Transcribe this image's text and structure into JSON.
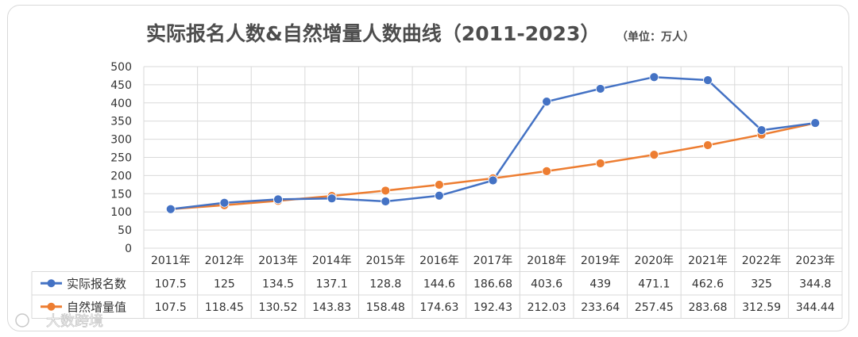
{
  "chart_data": {
    "type": "line",
    "title": "实际报名人数&自然增量人数曲线（2011-2023）",
    "unit_note": "（单位：万人）",
    "categories": [
      "2011年",
      "2012年",
      "2013年",
      "2014年",
      "2015年",
      "2016年",
      "2017年",
      "2018年",
      "2019年",
      "2020年",
      "2021年",
      "2022年",
      "2023年"
    ],
    "y_ticks": [
      "0",
      "50",
      "100",
      "150",
      "200",
      "250",
      "300",
      "350",
      "400",
      "450",
      "500"
    ],
    "ylim": [
      0,
      500
    ],
    "grid": true,
    "legend": "data-table",
    "series": [
      {
        "name": "实际报名数",
        "color": "#4472c4",
        "values": [
          107.5,
          125,
          134.5,
          137.1,
          128.8,
          144.6,
          186.68,
          403.6,
          439,
          471.1,
          462.6,
          325,
          344.8
        ],
        "labels": [
          "107.5",
          "125",
          "134.5",
          "137.1",
          "128.8",
          "144.6",
          "186.68",
          "403.6",
          "439",
          "471.1",
          "462.6",
          "325",
          "344.8"
        ]
      },
      {
        "name": "自然增量值",
        "color": "#ed7d31",
        "values": [
          107.5,
          118.45,
          130.52,
          143.83,
          158.48,
          174.63,
          192.43,
          212.03,
          233.64,
          257.45,
          283.68,
          312.59,
          344.44
        ],
        "labels": [
          "107.5",
          "118.45",
          "130.52",
          "143.83",
          "158.48",
          "174.63",
          "192.43",
          "212.03",
          "233.64",
          "257.45",
          "283.68",
          "312.59",
          "344.44"
        ]
      }
    ]
  },
  "watermark": "大数跨境"
}
